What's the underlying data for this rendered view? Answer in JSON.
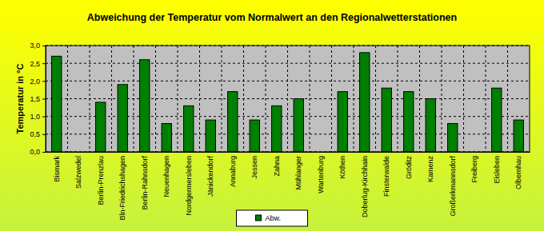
{
  "chart_data": {
    "type": "bar",
    "title": "Abweichung der Temperatur vom Normalwert an den Regionalwetterstationen",
    "y_label": "Temperatur in °C",
    "categories": [
      "Bismark",
      "Salzwedel",
      "Berlin-Prenzlau",
      "Bln-Friedrichshagen",
      "Berlin-Rahnsdorf",
      "Neuenhagen",
      "Nordgermersleben",
      "Jänickendorf",
      "Annaburg",
      "Jessen",
      "Zahna",
      "Mühlanger",
      "Wartenburg",
      "Köthen",
      "Doberlug-Kirchhain",
      "Finsterwalde",
      "Gröditz",
      "Kamenz",
      "Großerkmannsdorf",
      "Freiberg",
      "Eisleben",
      "Olbernhau"
    ],
    "series": [
      {
        "name": "Abw.",
        "color": "#008000",
        "values": [
          2.7,
          null,
          1.4,
          1.9,
          2.6,
          0.8,
          1.3,
          0.9,
          1.7,
          0.9,
          1.3,
          1.5,
          null,
          1.7,
          2.8,
          1.8,
          1.7,
          1.5,
          0.8,
          null,
          1.8,
          0.9
        ]
      }
    ],
    "ylim": [
      0,
      3
    ],
    "yticks": [
      {
        "value": 0,
        "label": "0,0"
      },
      {
        "value": 0.5,
        "label": "0,5"
      },
      {
        "value": 1,
        "label": "1,0"
      },
      {
        "value": 1.5,
        "label": "1,5"
      },
      {
        "value": 2,
        "label": "2,0"
      },
      {
        "value": 2.5,
        "label": "2,5"
      },
      {
        "value": 3,
        "label": "3,0"
      }
    ],
    "grid": true,
    "legend": "bottom"
  }
}
